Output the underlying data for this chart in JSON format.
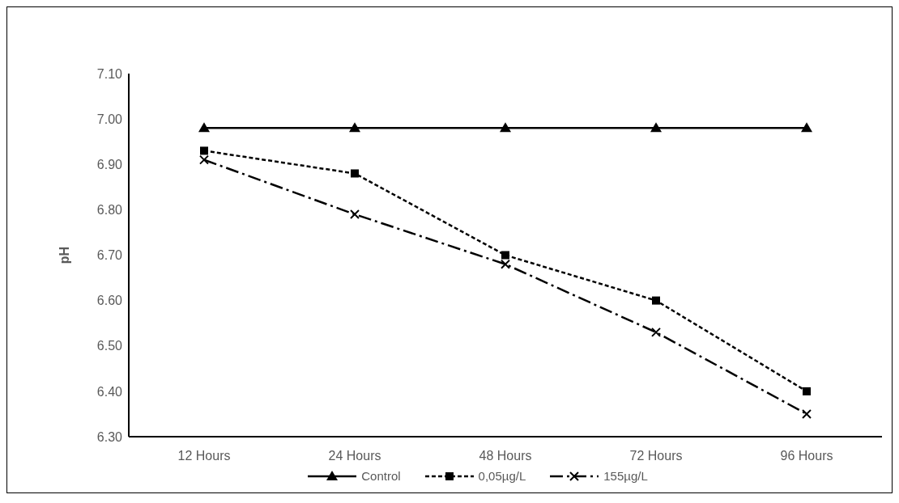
{
  "chart_data": {
    "type": "line",
    "ylabel": "pH",
    "categories": [
      "12 Hours",
      "24 Hours",
      "48 Hours",
      "72 Hours",
      "96 Hours"
    ],
    "series": [
      {
        "name": "Control",
        "color": "#000000",
        "marker": "triangle",
        "line_style": "solid",
        "values": [
          6.98,
          6.98,
          6.98,
          6.98,
          6.98
        ]
      },
      {
        "name": "0,05µg/L",
        "color": "#000000",
        "marker": "square",
        "line_style": "dotted",
        "values": [
          6.93,
          6.88,
          6.7,
          6.6,
          6.4
        ]
      },
      {
        "name": "155µg/L",
        "color": "#000000",
        "marker": "cross",
        "line_style": "dashed",
        "values": [
          6.91,
          6.79,
          6.68,
          6.53,
          6.35
        ]
      }
    ],
    "ylim": [
      6.3,
      7.1
    ],
    "yticks": [
      {
        "value": 6.3,
        "label": "6.30"
      },
      {
        "value": 6.4,
        "label": "6.40"
      },
      {
        "value": 6.5,
        "label": "6.50"
      },
      {
        "value": 6.6,
        "label": "6.60"
      },
      {
        "value": 6.7,
        "label": "6.70"
      },
      {
        "value": 6.8,
        "label": "6.80"
      },
      {
        "value": 6.9,
        "label": "6.90"
      },
      {
        "value": 7.0,
        "label": "7.00"
      },
      {
        "value": 7.1,
        "label": "7.10"
      }
    ],
    "grid": false,
    "legend": "bottom"
  }
}
